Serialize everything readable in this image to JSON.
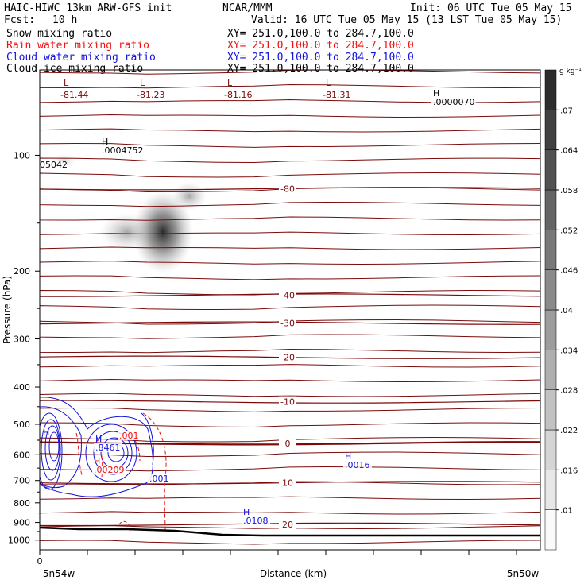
{
  "header": {
    "title_left": "HAIC-HIWC 13km ARW-GFS init",
    "center": "NCAR/MMM",
    "init": "Init: 06 UTC Tue 05 May 15",
    "fcst_label": "Fcst:",
    "fcst_value": "10 h",
    "valid": "Valid: 16 UTC Tue 05 May 15 (13 LST Tue 05 May 15)"
  },
  "fields": [
    {
      "name": "Snow mixing ratio",
      "xy": "XY= 251.0,100.0 to 284.7,100.0",
      "color": "#000000"
    },
    {
      "name": "Rain water mixing ratio",
      "xy": "XY= 251.0,100.0 to 284.7,100.0",
      "color": "#ee1111"
    },
    {
      "name": "Cloud water mixing ratio",
      "xy": "XY= 251.0,100.0 to 284.7,100.0",
      "color": "#1111dd"
    },
    {
      "name": "Cloud ice mixing ratio",
      "xy": "XY= 251.0,100.0 to 284.7,100.0",
      "color": "#000000"
    }
  ],
  "colorbar": {
    "unit": "g kg⁻¹",
    "ticks": [
      ".01",
      ".016",
      ".022",
      ".028",
      ".034",
      ".04",
      ".046",
      ".052",
      ".058",
      ".064",
      ".07"
    ]
  },
  "chart_data": {
    "type": "contour",
    "title": "",
    "xlabel": "Distance (km)",
    "ylabel": "Pressure (hPa)",
    "x_start_tick": "0",
    "x_left_label": "5n54w",
    "x_right_label": "5n50w",
    "y_ticks": [
      100,
      200,
      300,
      400,
      500,
      600,
      700,
      800,
      900,
      1000
    ],
    "ylim": [
      1060,
      60
    ],
    "y_scale": "log",
    "colors": {
      "temperature": "#7a0a0a",
      "rain": "#ee1111",
      "cloud_water": "#1111dd",
      "snow": "#000000",
      "terrain": "#000000"
    },
    "temperature_contours": [
      {
        "label": "-80",
        "p": 122
      },
      {
        "label": "-40",
        "p": 231
      },
      {
        "label": "-30",
        "p": 273
      },
      {
        "label": "-20",
        "p": 335
      },
      {
        "label": "-10",
        "p": 437
      },
      {
        "label": "0",
        "p": 560
      },
      {
        "label": "10",
        "p": 709
      },
      {
        "label": "20",
        "p": 910
      }
    ],
    "low_labels": [
      {
        "letter": "L",
        "value": "-81.44"
      },
      {
        "letter": "L",
        "value": "-81.23"
      },
      {
        "letter": "L",
        "value": "-81.16"
      },
      {
        "letter": "L",
        "value": "-81.31"
      }
    ],
    "max_labels": [
      {
        "letter": "H",
        "value": ".0000070",
        "color": "#000000"
      },
      {
        "letter": "H",
        "value": ".0004752",
        "color": "#000000"
      },
      {
        "letter": "",
        "value": "05042",
        "color": "#000000"
      },
      {
        "letter": "H",
        "value": ".8461",
        "color": "#1111dd"
      },
      {
        "letter": "H",
        "value": ".00209",
        "color": "#ee1111"
      },
      {
        "letter": "H",
        "value": ".0016",
        "color": "#1111dd"
      },
      {
        "letter": "",
        "value": ".001",
        "color": "#1111dd"
      },
      {
        "letter": "H",
        "value": ".0108",
        "color": "#1111dd"
      },
      {
        "letter": "H",
        "value": "",
        "color": "#1111dd"
      },
      {
        "letter": "",
        "value": ".001",
        "color": "#ee1111"
      }
    ]
  }
}
